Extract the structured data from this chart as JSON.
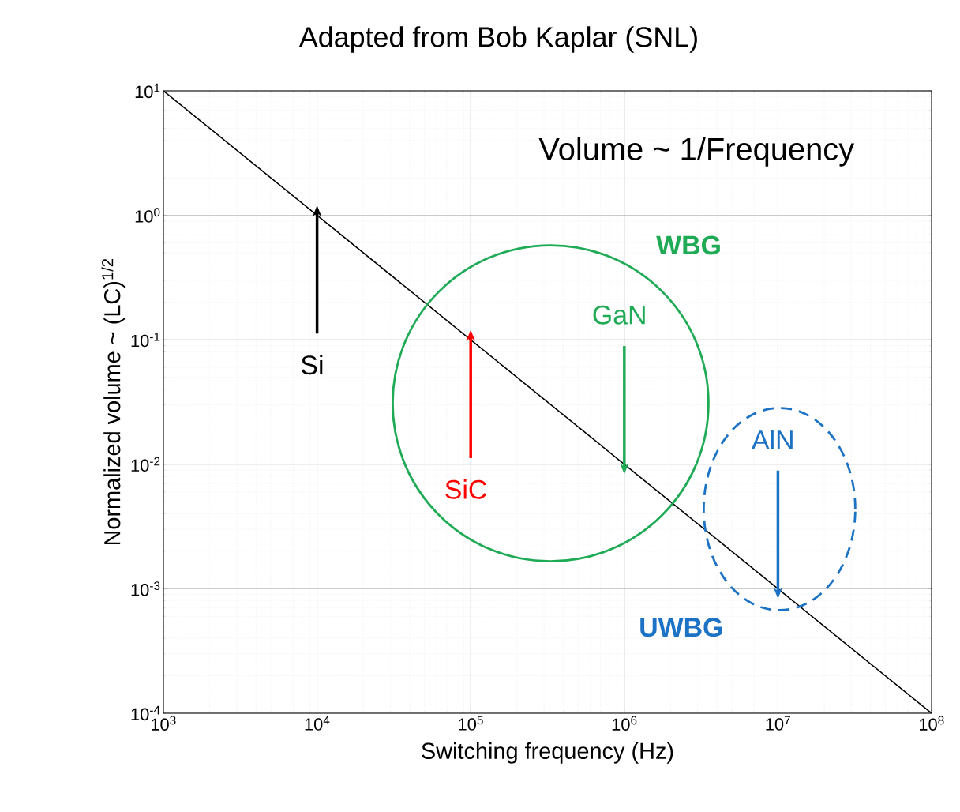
{
  "chart_data": {
    "type": "line",
    "title": "Adapted from Bob Kaplar (SNL)",
    "xlabel": "Switching frequency (Hz)",
    "ylabel": "Normalized volume ~ (LC)$^{1/2}$",
    "x": [
      1000,
      10000,
      100000,
      1000000,
      10000000,
      100000000
    ],
    "series": [
      {
        "color": "#000000",
        "values": [
          10,
          1,
          0.1,
          0.01,
          0.001,
          0.0001
        ]
      }
    ],
    "log": "xy",
    "grid": true,
    "marker": "none",
    "line_style": "solid",
    "xlim": [
      1000,
      100000000
    ],
    "ylim": [
      0.0001,
      10
    ],
    "xticks": [
      {
        "value": 1000,
        "label": "10$^{3}$"
      },
      {
        "value": 10000,
        "label": "10$^{4}$"
      },
      {
        "value": 100000,
        "label": "10$^{5}$"
      },
      {
        "value": 1000000,
        "label": "10$^{6}$"
      },
      {
        "value": 10000000,
        "label": "10$^{7}$"
      },
      {
        "value": 100000000,
        "label": "10$^{8}$"
      }
    ],
    "yticks": [
      {
        "value": 0.0001,
        "label": "10$^{-4}$"
      },
      {
        "value": 0.001,
        "label": "10$^{-3}$"
      },
      {
        "value": 0.01,
        "label": "10$^{-2}$"
      },
      {
        "value": 0.1,
        "label": "10$^{-1}$"
      },
      {
        "value": 1,
        "label": "10$^{0}$"
      },
      {
        "value": 10,
        "label": "10$^{1}$"
      }
    ],
    "annotations": [
      "Volume ~ 1/Frequency",
      "WBG",
      "UWBG",
      {
        "text": "Si",
        "x": 10000,
        "y": 1
      },
      {
        "text": "SiC",
        "x": 100000,
        "y": 0.1
      },
      {
        "text": "GaN",
        "x": 1000000,
        "y": 0.01
      },
      {
        "text": "AlN",
        "x": 10000000,
        "y": 0.001
      }
    ]
  }
}
